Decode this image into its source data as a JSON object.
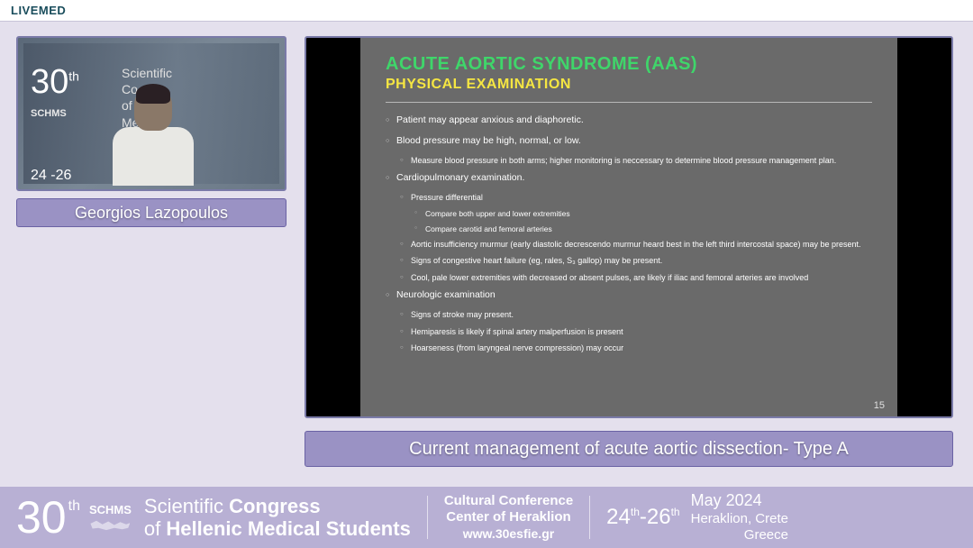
{
  "brand": {
    "logo": "LIVEMED"
  },
  "speaker": {
    "name": "Georgios Lazopoulos"
  },
  "thumb": {
    "thirty": "30",
    "th": "th",
    "schms": "SCHMS",
    "conf_line1": "Scientific",
    "conf_line2": "Co",
    "conf_line3": "of H",
    "conf_line4": "Me",
    "dates": "24  -26"
  },
  "presentation_title": "Current management of acute aortic dissection- Type A",
  "slide": {
    "title1": "ACUTE AORTIC SYNDROME (AAS)",
    "title1_color": "#3fd66a",
    "title2": "PHYSICAL EXAMINATION",
    "title2_color": "#f5e642",
    "page_num": "15",
    "bullets": [
      {
        "lvl": 0,
        "t": "Patient may appear anxious and diaphoretic."
      },
      {
        "lvl": 0,
        "t": "Blood pressure may be high, normal, or low."
      },
      {
        "lvl": 1,
        "t": "Measure blood pressure in both arms; higher monitoring is neccessary to determine blood pressure management plan."
      },
      {
        "lvl": 0,
        "t": "Cardiopulmonary examination."
      },
      {
        "lvl": 1,
        "t": "Pressure differential"
      },
      {
        "lvl": 2,
        "t": "Compare both upper and lower extremities"
      },
      {
        "lvl": 2,
        "t": "Compare carotid and femoral arteries"
      },
      {
        "lvl": 1,
        "t": "Aortic insufficiency murmur (early diastolic decrescendo murmur heard best in the left third intercostal space) may be present."
      },
      {
        "lvl": 1,
        "t": "Signs of congestive heart failure (eg, rales, S₃ gallop) may be present."
      },
      {
        "lvl": 1,
        "t": "Cool, pale lower extremities with decreased or absent pulses, are likely if iliac and femoral arteries are involved"
      },
      {
        "lvl": 0,
        "t": "Neurologic examination"
      },
      {
        "lvl": 1,
        "t": "Signs of stroke may present."
      },
      {
        "lvl": 1,
        "t": "Hemiparesis is likely if spinal artery malperfusion is present"
      },
      {
        "lvl": 1,
        "t": "Hoarseness (from laryngeal nerve compression) may occur"
      }
    ]
  },
  "footer": {
    "thirty": "30",
    "th": "th",
    "schms": "SCHMS",
    "title_l1a": "Scientific",
    "title_l1b": "Congress",
    "title_l2a": "of",
    "title_l2b": "Hellenic Medical Students",
    "venue_l1": "Cultural Conference",
    "venue_l2": "Center of Heraklion",
    "venue_url": "www.30esfie.gr",
    "d1": "24",
    "d_sep": "-",
    "d2": "26",
    "month": "May",
    "year": "2024",
    "loc_l1": "Heraklion, Crete",
    "loc_l2": "Greece"
  }
}
